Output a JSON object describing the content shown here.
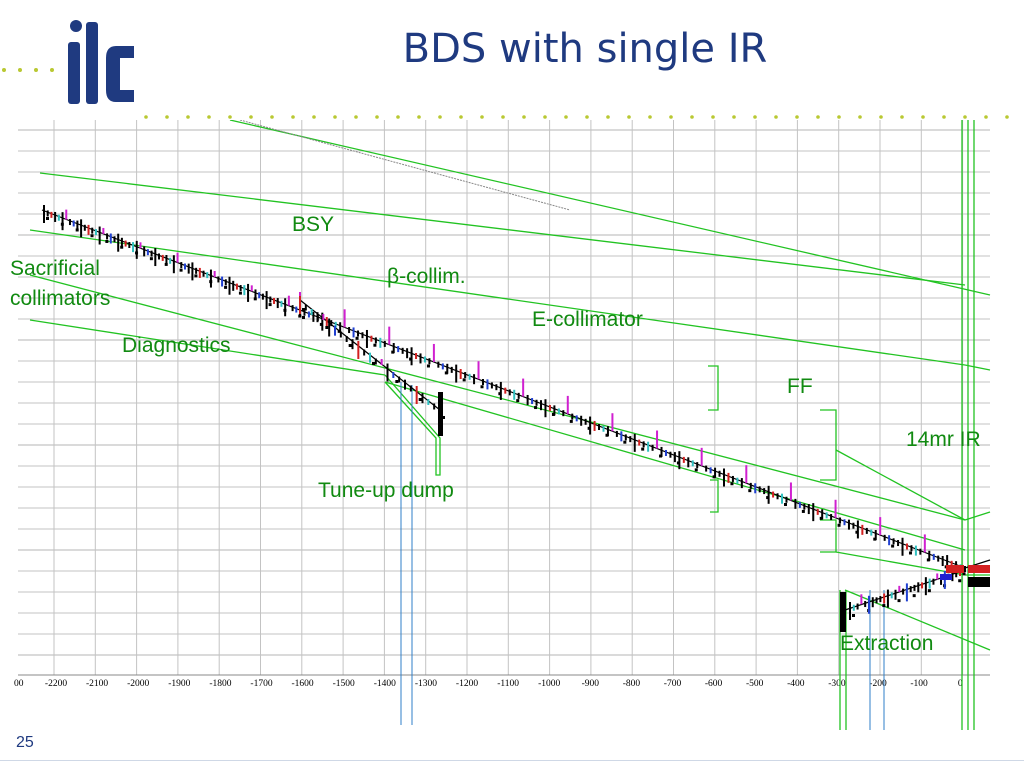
{
  "slide": {
    "title": "BDS with single IR",
    "page_number": "25",
    "logo_text": "ilc"
  },
  "labels": {
    "bsy": "BSY",
    "sacrificial_1": "Sacrificial",
    "sacrificial_2": "collimators",
    "beta_collim": "β-collim.",
    "e_collimator": "E-collimator",
    "diagnostics": "Diagnostics",
    "ff": "FF",
    "ir": "14mr IR",
    "tune_up_dump": "Tune-up dump",
    "extraction": "Extraction"
  },
  "axis": {
    "x_tick_labels": [
      "00",
      "-2200",
      "-2100",
      "-2000",
      "-1900",
      "-1800",
      "-1700",
      "-1600",
      "-1500",
      "-1400",
      "-1300",
      "-1200",
      "-1100",
      "-1000",
      "-900",
      "-800",
      "-700",
      "-600",
      "-500",
      "-400",
      "-300",
      "-200",
      "-100",
      "0"
    ]
  },
  "colors": {
    "title": "#1f3a80",
    "label_green": "#118a11",
    "label_blue": "#1b1bb0",
    "outline_green": "#22c322",
    "grid": "#b5b5b5",
    "beam": "#000000",
    "dots": "#b9c832"
  }
}
